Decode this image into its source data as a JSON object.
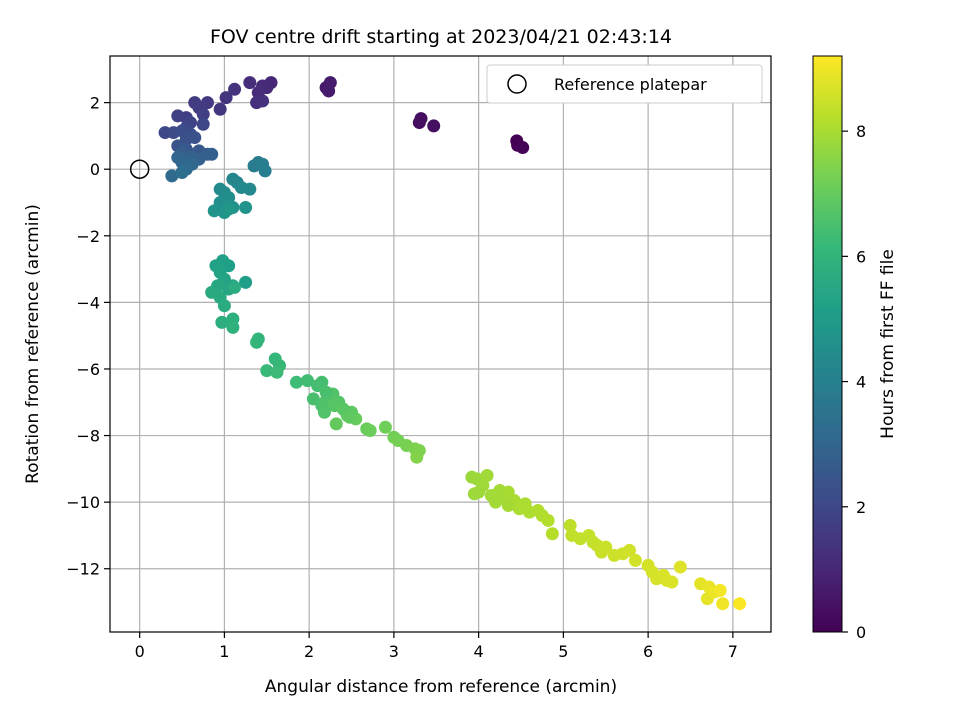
{
  "chart_data": {
    "type": "scatter",
    "title": "FOV centre drift starting at 2023/04/21 02:43:14",
    "xlabel": "Angular distance from reference (arcmin)",
    "ylabel": "Rotation from reference (arcmin)",
    "xlim": [
      -0.35,
      7.45
    ],
    "ylim": [
      -13.9,
      3.4
    ],
    "xticks": [
      0,
      1,
      2,
      3,
      4,
      5,
      6,
      7
    ],
    "yticks": [
      2,
      0,
      -2,
      -4,
      -6,
      -8,
      -10,
      -12
    ],
    "grid": true,
    "legend": {
      "position": "top-right",
      "entries": [
        "Reference platepar"
      ]
    },
    "reference_point": {
      "x": 0,
      "y": 0
    },
    "colorbar": {
      "label": "Hours from first FF file",
      "range": [
        0,
        9.2
      ],
      "ticks": [
        0,
        2,
        4,
        6,
        8
      ],
      "colormap": "viridis",
      "stops": [
        "#440154",
        "#482878",
        "#3e4989",
        "#31688e",
        "#26828e",
        "#1f9e89",
        "#35b779",
        "#6ece58",
        "#b5de2b",
        "#fde725"
      ]
    },
    "points": [
      [
        4.45,
        0.85,
        0.0
      ],
      [
        4.46,
        0.72,
        0.05
      ],
      [
        4.52,
        0.65,
        0.1
      ],
      [
        3.3,
        1.4,
        0.3
      ],
      [
        3.32,
        1.52,
        0.35
      ],
      [
        3.47,
        1.3,
        0.4
      ],
      [
        2.2,
        2.45,
        0.6
      ],
      [
        2.23,
        2.35,
        0.65
      ],
      [
        2.25,
        2.6,
        0.7
      ],
      [
        1.55,
        2.6,
        1.0
      ],
      [
        1.5,
        2.45,
        1.05
      ],
      [
        1.45,
        2.5,
        1.1
      ],
      [
        1.4,
        2.3,
        1.15
      ],
      [
        1.3,
        2.6,
        1.2
      ],
      [
        1.38,
        2.0,
        1.25
      ],
      [
        1.45,
        2.05,
        1.3
      ],
      [
        1.12,
        2.4,
        1.35
      ],
      [
        1.02,
        2.15,
        1.4
      ],
      [
        0.95,
        1.8,
        1.5
      ],
      [
        0.8,
        2.0,
        1.55
      ],
      [
        0.65,
        2.0,
        1.6
      ],
      [
        0.7,
        1.85,
        1.65
      ],
      [
        0.75,
        1.65,
        1.7
      ],
      [
        0.55,
        1.55,
        1.75
      ],
      [
        0.45,
        1.6,
        1.8
      ],
      [
        0.6,
        1.4,
        1.9
      ],
      [
        0.75,
        1.35,
        1.95
      ],
      [
        0.55,
        1.25,
        2.0
      ],
      [
        0.3,
        1.1,
        2.05
      ],
      [
        0.4,
        1.1,
        2.1
      ],
      [
        0.5,
        1.15,
        2.15
      ],
      [
        0.6,
        1.05,
        2.2
      ],
      [
        0.55,
        0.9,
        2.3
      ],
      [
        0.65,
        0.95,
        2.35
      ],
      [
        0.45,
        0.7,
        2.4
      ],
      [
        0.55,
        0.6,
        2.5
      ],
      [
        0.7,
        0.55,
        2.55
      ],
      [
        0.6,
        0.45,
        2.6
      ],
      [
        0.5,
        0.5,
        2.7
      ],
      [
        0.8,
        0.45,
        2.75
      ],
      [
        0.85,
        0.45,
        2.8
      ],
      [
        0.7,
        0.3,
        2.85
      ],
      [
        0.6,
        0.35,
        2.9
      ],
      [
        0.45,
        0.35,
        3.0
      ],
      [
        0.5,
        0.2,
        3.05
      ],
      [
        0.62,
        0.15,
        3.1
      ],
      [
        0.55,
        0.0,
        3.15
      ],
      [
        0.38,
        -0.2,
        3.2
      ],
      [
        0.5,
        -0.1,
        3.3
      ],
      [
        1.35,
        0.1,
        3.8
      ],
      [
        1.4,
        0.2,
        3.85
      ],
      [
        1.45,
        0.15,
        3.9
      ],
      [
        1.48,
        -0.05,
        3.95
      ],
      [
        1.1,
        -0.3,
        4.2
      ],
      [
        1.15,
        -0.4,
        4.25
      ],
      [
        1.2,
        -0.55,
        4.3
      ],
      [
        1.3,
        -0.6,
        4.35
      ],
      [
        0.95,
        -0.6,
        4.4
      ],
      [
        1.0,
        -0.7,
        4.45
      ],
      [
        1.05,
        -0.85,
        4.5
      ],
      [
        0.95,
        -1.0,
        4.55
      ],
      [
        1.05,
        -1.1,
        4.6
      ],
      [
        1.1,
        -1.15,
        4.65
      ],
      [
        1.25,
        -1.15,
        4.7
      ],
      [
        0.88,
        -1.25,
        4.75
      ],
      [
        1.0,
        -1.3,
        4.8
      ],
      [
        1.05,
        -1.2,
        4.85
      ],
      [
        1.25,
        -3.4,
        5.1
      ],
      [
        1.05,
        -2.9,
        5.15
      ],
      [
        0.98,
        -2.75,
        5.2
      ],
      [
        0.9,
        -2.9,
        5.25
      ],
      [
        0.95,
        -3.1,
        5.3
      ],
      [
        1.0,
        -3.3,
        5.35
      ],
      [
        1.1,
        -3.5,
        5.4
      ],
      [
        1.05,
        -3.6,
        5.45
      ],
      [
        0.92,
        -3.5,
        5.5
      ],
      [
        0.85,
        -3.7,
        5.55
      ],
      [
        0.95,
        -3.85,
        5.6
      ],
      [
        1.0,
        -4.1,
        5.65
      ],
      [
        1.12,
        -3.55,
        5.7
      ],
      [
        0.97,
        -4.6,
        5.75
      ],
      [
        1.1,
        -4.5,
        5.8
      ],
      [
        1.1,
        -4.75,
        5.85
      ],
      [
        1.4,
        -5.1,
        6.0
      ],
      [
        1.38,
        -5.2,
        6.05
      ],
      [
        1.6,
        -5.7,
        6.1
      ],
      [
        1.65,
        -5.9,
        6.15
      ],
      [
        1.5,
        -6.05,
        6.2
      ],
      [
        1.62,
        -6.1,
        6.25
      ],
      [
        1.85,
        -6.4,
        6.3
      ],
      [
        1.98,
        -6.35,
        6.35
      ],
      [
        2.1,
        -6.5,
        6.4
      ],
      [
        2.15,
        -6.4,
        6.45
      ],
      [
        2.05,
        -6.9,
        6.5
      ],
      [
        2.15,
        -7.1,
        6.55
      ],
      [
        2.2,
        -6.95,
        6.6
      ],
      [
        2.28,
        -6.75,
        6.65
      ],
      [
        2.35,
        -7.0,
        6.7
      ],
      [
        2.3,
        -7.1,
        6.75
      ],
      [
        2.42,
        -7.25,
        6.8
      ],
      [
        2.5,
        -7.3,
        6.85
      ],
      [
        2.45,
        -7.4,
        6.9
      ],
      [
        2.32,
        -7.65,
        6.95
      ],
      [
        2.55,
        -7.5,
        7.0
      ],
      [
        2.68,
        -7.8,
        7.05
      ],
      [
        2.72,
        -7.85,
        7.1
      ],
      [
        2.9,
        -7.75,
        7.15
      ],
      [
        3.0,
        -8.05,
        7.2
      ],
      [
        3.05,
        -8.15,
        7.25
      ],
      [
        3.15,
        -8.3,
        7.3
      ],
      [
        3.25,
        -8.4,
        7.35
      ],
      [
        3.3,
        -8.45,
        7.4
      ],
      [
        3.27,
        -8.65,
        7.45
      ],
      [
        2.2,
        -6.7,
        6.5
      ],
      [
        2.18,
        -7.3,
        6.6
      ],
      [
        2.4,
        -7.2,
        6.8
      ],
      [
        2.48,
        -7.45,
        6.9
      ],
      [
        3.92,
        -9.25,
        7.8
      ],
      [
        3.98,
        -9.3,
        7.82
      ],
      [
        4.05,
        -9.5,
        7.85
      ],
      [
        4.1,
        -9.2,
        7.88
      ],
      [
        4.15,
        -9.8,
        7.9
      ],
      [
        4.25,
        -9.65,
        7.92
      ],
      [
        4.3,
        -9.9,
        7.95
      ],
      [
        4.35,
        -9.7,
        7.98
      ],
      [
        4.42,
        -9.95,
        8.0
      ],
      [
        4.48,
        -10.2,
        8.02
      ],
      [
        4.55,
        -10.05,
        8.05
      ],
      [
        4.6,
        -10.3,
        8.08
      ],
      [
        4.7,
        -10.25,
        8.1
      ],
      [
        4.75,
        -10.4,
        8.12
      ],
      [
        4.82,
        -10.55,
        8.15
      ],
      [
        4.87,
        -10.95,
        8.18
      ],
      [
        4.2,
        -10.0,
        7.9
      ],
      [
        4.35,
        -10.1,
        7.95
      ],
      [
        4.0,
        -9.7,
        7.85
      ],
      [
        3.95,
        -9.75,
        7.83
      ],
      [
        5.08,
        -10.7,
        8.3
      ],
      [
        5.1,
        -11.0,
        8.32
      ],
      [
        5.2,
        -11.1,
        8.35
      ],
      [
        5.3,
        -11.0,
        8.38
      ],
      [
        5.35,
        -11.2,
        8.4
      ],
      [
        5.4,
        -11.3,
        8.42
      ],
      [
        5.45,
        -11.5,
        8.45
      ],
      [
        5.5,
        -11.35,
        8.48
      ],
      [
        5.6,
        -11.6,
        8.5
      ],
      [
        5.7,
        -11.55,
        8.52
      ],
      [
        5.78,
        -11.45,
        8.55
      ],
      [
        5.85,
        -11.75,
        8.58
      ],
      [
        6.0,
        -11.9,
        8.6
      ],
      [
        6.05,
        -12.1,
        8.62
      ],
      [
        6.1,
        -12.3,
        8.65
      ],
      [
        6.18,
        -12.2,
        8.68
      ],
      [
        6.22,
        -12.35,
        8.7
      ],
      [
        6.28,
        -12.4,
        8.72
      ],
      [
        6.38,
        -11.95,
        8.75
      ],
      [
        6.62,
        -12.45,
        8.85
      ],
      [
        6.7,
        -12.9,
        8.88
      ],
      [
        6.72,
        -12.55,
        8.9
      ],
      [
        6.78,
        -12.7,
        8.95
      ],
      [
        6.88,
        -13.05,
        9.0
      ],
      [
        6.85,
        -12.65,
        9.05
      ],
      [
        7.08,
        -13.05,
        9.15
      ]
    ]
  }
}
